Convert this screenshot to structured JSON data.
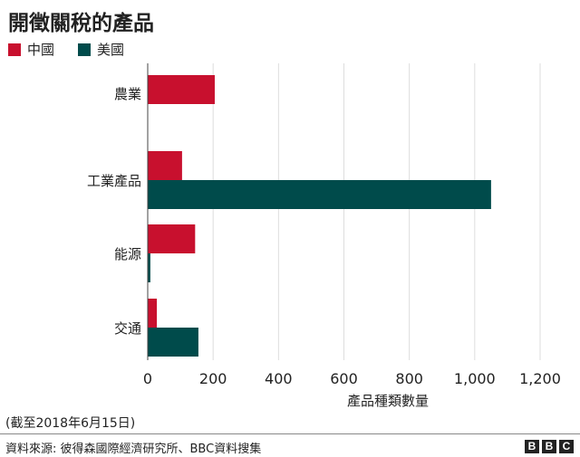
{
  "title": "開徵關稅的產品",
  "legend": [
    {
      "label": "中國",
      "color": "#c8102e"
    },
    {
      "label": "美國",
      "color": "#004b4b"
    }
  ],
  "note": "(截至2018年6月15日)",
  "source": "資料來源: 彼得森國際經濟研究所、BBC資料搜集",
  "logo": [
    "B",
    "B",
    "C"
  ],
  "chart_data": {
    "type": "bar",
    "orientation": "horizontal",
    "categories": [
      "農業",
      "工業產品",
      "能源",
      "交通"
    ],
    "series": [
      {
        "name": "中國",
        "color": "#c8102e",
        "values": [
          205,
          105,
          145,
          28
        ]
      },
      {
        "name": "美國",
        "color": "#004b4b",
        "values": [
          0,
          1050,
          8,
          155
        ]
      }
    ],
    "xlabel": "產品種類數量",
    "xlim": [
      0,
      1200
    ],
    "xticks": [
      0,
      200,
      400,
      600,
      800,
      1000,
      1200
    ],
    "xtick_labels": [
      "0",
      "200",
      "400",
      "600",
      "800",
      "1,000",
      "1,200"
    ],
    "grid": "vertical",
    "legend_position": "top-left"
  }
}
